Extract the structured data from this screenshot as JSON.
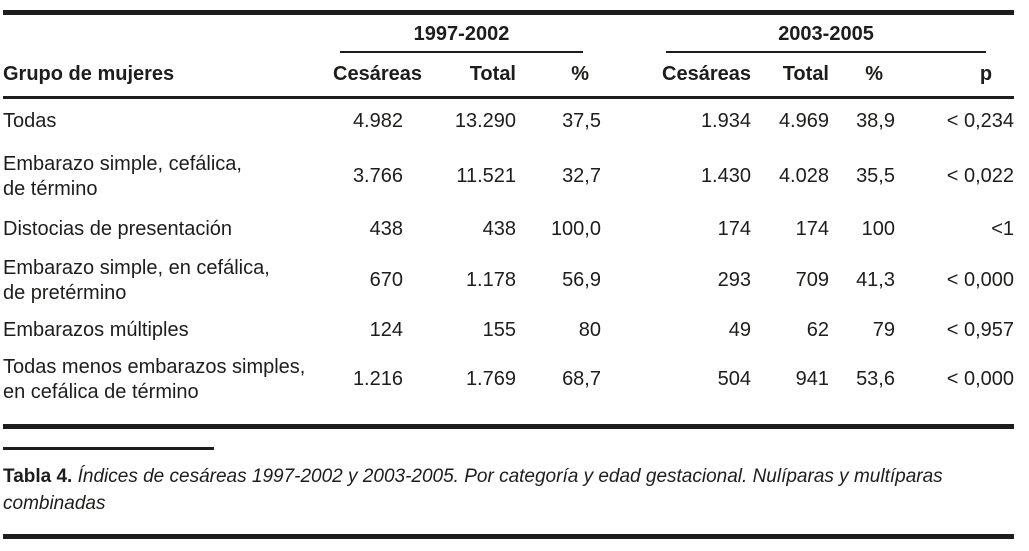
{
  "colors": {
    "ink": "#1d1d1b",
    "background": "#ffffff"
  },
  "table": {
    "group_headers": [
      {
        "label": "1997-2002"
      },
      {
        "label": "2003-2005"
      }
    ],
    "columns": {
      "group": "Grupo de mujeres",
      "cesareas": "Cesáreas",
      "total": "Total",
      "pct": "%",
      "p": "p"
    },
    "rows": [
      {
        "group": "Todas",
        "cesareas_1997": "4.982",
        "total_1997": "13.290",
        "pct_1997": "37,5",
        "cesareas_2003": "1.934",
        "total_2003": "4.969",
        "pct_2003": "38,9",
        "p": "< 0,234"
      },
      {
        "group": "Embarazo simple, cefálica,\nde término",
        "cesareas_1997": "3.766",
        "total_1997": "11.521",
        "pct_1997": "32,7",
        "cesareas_2003": "1.430",
        "total_2003": "4.028",
        "pct_2003": "35,5",
        "p": "< 0,022"
      },
      {
        "group": "Distocias de presentación",
        "cesareas_1997": "438",
        "total_1997": "438",
        "pct_1997": "100,0",
        "cesareas_2003": "174",
        "total_2003": "174",
        "pct_2003": "100",
        "p": "<1"
      },
      {
        "group": "Embarazo simple,  en cefálica,\nde pretérmino",
        "cesareas_1997": "670",
        "total_1997": "1.178",
        "pct_1997": "56,9",
        "cesareas_2003": "293",
        "total_2003": "709",
        "pct_2003": "41,3",
        "p": "< 0,000"
      },
      {
        "group": "Embarazos múltiples",
        "cesareas_1997": "124",
        "total_1997": "155",
        "pct_1997": "80",
        "cesareas_2003": "49",
        "total_2003": "62",
        "pct_2003": "79",
        "p": "< 0,957"
      },
      {
        "group": "Todas menos embarazos simples,\nen cefálica de término",
        "cesareas_1997": "1.216",
        "total_1997": "1.769",
        "pct_1997": "68,7",
        "cesareas_2003": "504",
        "total_2003": "941",
        "pct_2003": "53,6",
        "p": "< 0,000"
      }
    ]
  },
  "caption": {
    "label": "Tabla 4.",
    "line1": " Índices de cesáreas 1997-2002 y 2003-2005. Por categoría y edad gestacional. Nulíparas y multíparas",
    "line2": "combinadas"
  }
}
